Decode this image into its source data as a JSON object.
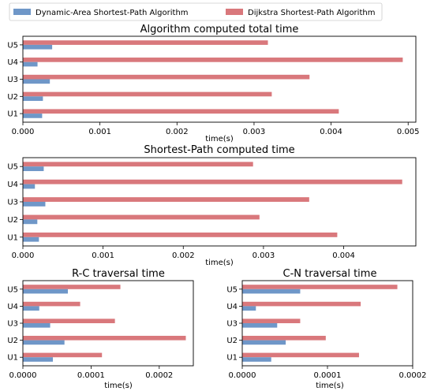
{
  "legend": {
    "items": [
      {
        "name": "Dynamic-Area Shortest-Path Algorithm",
        "color": "#6f97c8"
      },
      {
        "name": "Dijkstra Shortest-Path Algorithm",
        "color": "#d9787c"
      }
    ]
  },
  "chart_data": [
    {
      "type": "bar",
      "orientation": "horizontal",
      "title": "Algorithm computed total time",
      "xlabel": "time(s)",
      "ylabel": "",
      "categories": [
        "U1",
        "U2",
        "U3",
        "U4",
        "U5"
      ],
      "xlim": [
        0,
        0.0051
      ],
      "xticks": [
        0,
        0.001,
        0.002,
        0.003,
        0.004,
        0.005
      ],
      "xtick_labels": [
        "0.000",
        "0.001",
        "0.002",
        "0.003",
        "0.004",
        "0.005"
      ],
      "series": [
        {
          "name": "Dynamic-Area Shortest-Path Algorithm",
          "values": [
            0.00025,
            0.00026,
            0.00035,
            0.00019,
            0.00038
          ]
        },
        {
          "name": "Dijkstra Shortest-Path Algorithm",
          "values": [
            0.0041,
            0.00323,
            0.00372,
            0.00493,
            0.00318
          ]
        }
      ]
    },
    {
      "type": "bar",
      "orientation": "horizontal",
      "title": "Shortest-Path computed time",
      "xlabel": "time(s)",
      "ylabel": "",
      "categories": [
        "U1",
        "U2",
        "U3",
        "U4",
        "U5"
      ],
      "xlim": [
        0,
        0.0049
      ],
      "xticks": [
        0,
        0.001,
        0.002,
        0.003,
        0.004
      ],
      "xtick_labels": [
        "0.000",
        "0.001",
        "0.002",
        "0.003",
        "0.004"
      ],
      "series": [
        {
          "name": "Dynamic-Area Shortest-Path Algorithm",
          "values": [
            0.0002,
            0.00018,
            0.00028,
            0.00015,
            0.00026
          ]
        },
        {
          "name": "Dijkstra Shortest-Path Algorithm",
          "values": [
            0.00392,
            0.00295,
            0.00357,
            0.00473,
            0.00287
          ]
        }
      ]
    },
    {
      "type": "bar",
      "orientation": "horizontal",
      "title": "R-C traversal time",
      "xlabel": "time(s)",
      "ylabel": "",
      "categories": [
        "U1",
        "U2",
        "U3",
        "U4",
        "U5"
      ],
      "xlim": [
        0,
        0.00025
      ],
      "xticks": [
        0,
        0.0001,
        0.0002
      ],
      "xtick_labels": [
        "0.0000",
        "0.0001",
        "0.0002"
      ],
      "series": [
        {
          "name": "Dynamic-Area Shortest-Path Algorithm",
          "values": [
            4.4e-05,
            6.1e-05,
            4e-05,
            2.4e-05,
            6.6e-05
          ]
        },
        {
          "name": "Dijkstra Shortest-Path Algorithm",
          "values": [
            0.000116,
            0.000239,
            0.000135,
            8.4e-05,
            0.000143
          ]
        }
      ]
    },
    {
      "type": "bar",
      "orientation": "horizontal",
      "title": "C-N traversal time",
      "xlabel": "time(s)",
      "ylabel": "",
      "categories": [
        "U1",
        "U2",
        "U3",
        "U4",
        "U5"
      ],
      "xlim": [
        0,
        0.0002
      ],
      "xticks": [
        0,
        0.0001,
        0.0002
      ],
      "xtick_labels": [
        "0.0000",
        "0.0001",
        "0.0002"
      ],
      "series": [
        {
          "name": "Dynamic-Area Shortest-Path Algorithm",
          "values": [
            3.4e-05,
            5.1e-05,
            4.1e-05,
            1.6e-05,
            6.8e-05
          ]
        },
        {
          "name": "Dijkstra Shortest-Path Algorithm",
          "values": [
            0.000137,
            9.8e-05,
            6.8e-05,
            0.000139,
            0.000182
          ]
        }
      ]
    }
  ]
}
